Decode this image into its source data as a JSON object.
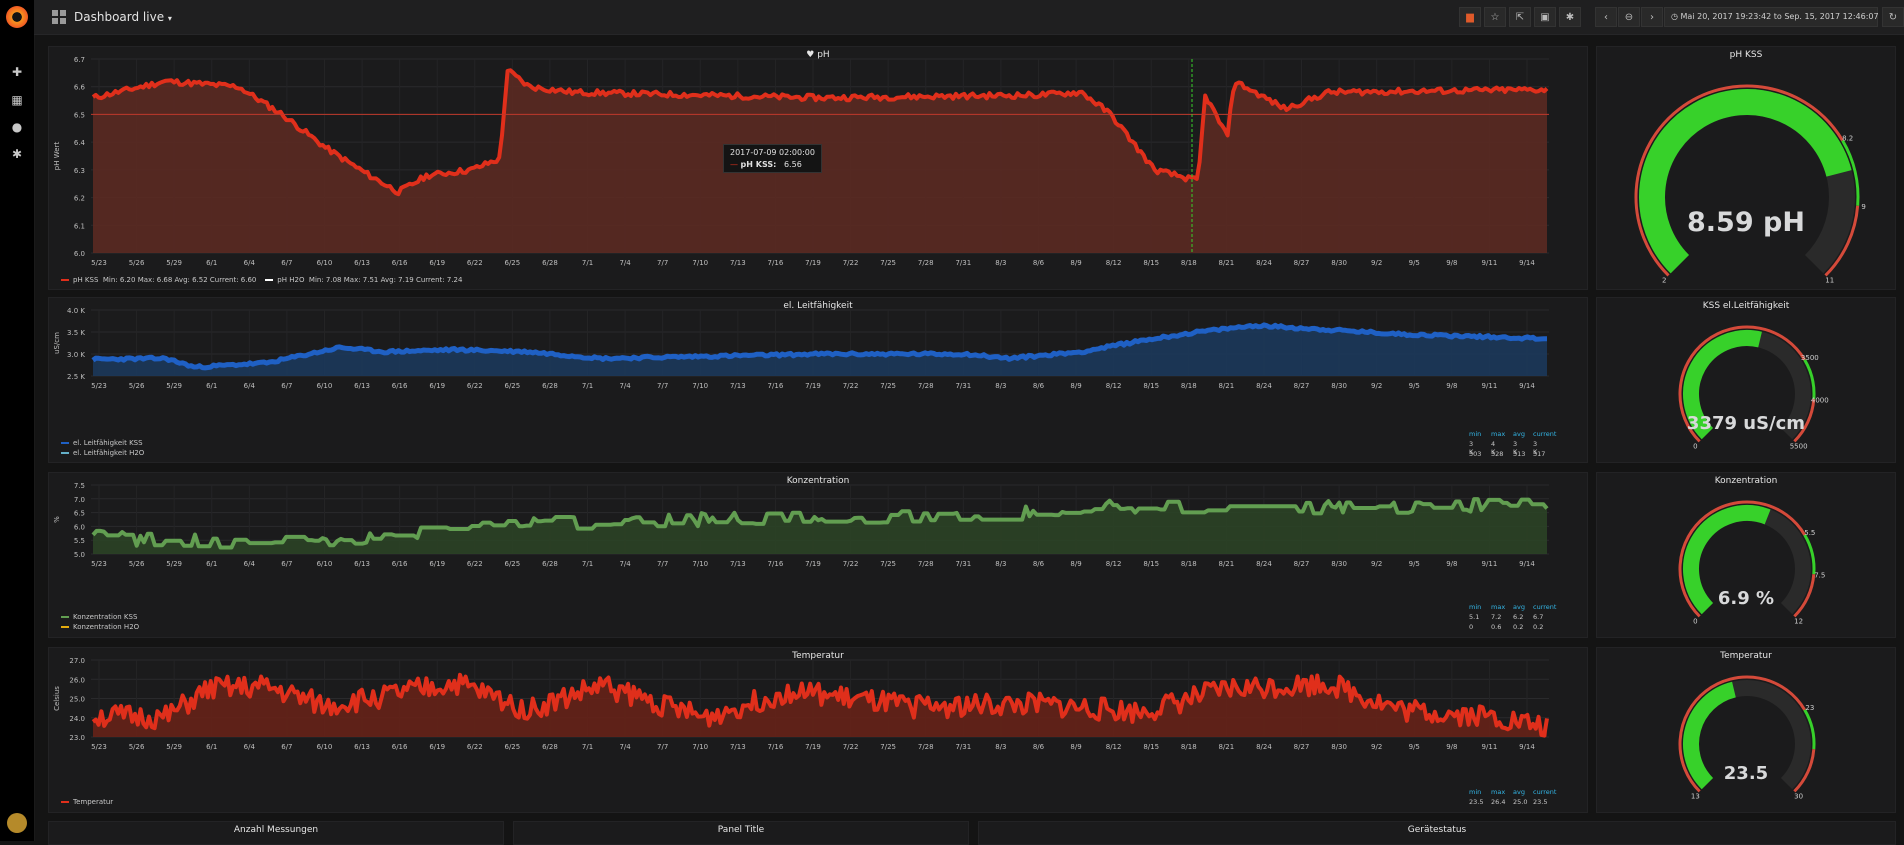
{
  "nav": {
    "title": "Dashboard live",
    "title_caret": "▾",
    "time_range": "Mai 20, 2017 19:23:42 to Sep. 15, 2017 12:46:07"
  },
  "colors": {
    "ph_line": "#e02f1b",
    "ph_fill": "#5e2a22",
    "blue_line": "#1f60c4",
    "blue_fill": "#1b3a5e",
    "green_line": "#629e51",
    "green_fill": "#2c4426",
    "temp_line": "#e02f1b",
    "temp_fill": "#6a2218",
    "gauge_green": "#37d12a",
    "gauge_red": "#d44a3a"
  },
  "ph_panel": {
    "title": "pH",
    "ylabel": "pH Wert",
    "yticks": [
      "6.7",
      "6.6",
      "6.5",
      "6.4",
      "6.3",
      "6.2",
      "6.1",
      "6.0"
    ],
    "legend": [
      {
        "name": "pH KSS",
        "stats": "Min: 6.20  Max: 6.68  Avg: 6.52  Current: 6.60",
        "color": "#e02f1b"
      },
      {
        "name": "pH H2O",
        "stats": "Min: 7.08  Max: 7.51  Avg: 7.19  Current: 7.24",
        "color": "#ffffff"
      }
    ],
    "tooltip": {
      "time": "2017-07-09 02:00:00",
      "series": "pH KSS:",
      "value": "6.56"
    }
  },
  "xticks": [
    "5/23",
    "5/26",
    "5/29",
    "6/1",
    "6/4",
    "6/7",
    "6/10",
    "6/13",
    "6/16",
    "6/19",
    "6/22",
    "6/25",
    "6/28",
    "7/1",
    "7/4",
    "7/7",
    "7/10",
    "7/13",
    "7/16",
    "7/19",
    "7/22",
    "7/25",
    "7/28",
    "7/31",
    "8/3",
    "8/6",
    "8/9",
    "8/12",
    "8/15",
    "8/18",
    "8/21",
    "8/24",
    "8/27",
    "8/30",
    "9/2",
    "9/5",
    "9/8",
    "9/11",
    "9/14"
  ],
  "cond_panel": {
    "title": "el. Leitfähigkeit",
    "ylabel": "uS/cm",
    "yticks": [
      "4.0 K",
      "3.5 K",
      "3.0 K",
      "2.5 K"
    ],
    "headers": [
      "min",
      "max",
      "avg",
      "current"
    ],
    "legend": [
      {
        "name": "el. Leitfähigkeit KSS",
        "color": "#1f60c4",
        "vals": [
          "3 K",
          "4 K",
          "3 K",
          "3 K"
        ]
      },
      {
        "name": "el. Leitfähigkeit H2O",
        "color": "#64b0c8",
        "vals": [
          "303",
          "328",
          "313",
          "317"
        ]
      }
    ]
  },
  "conc_panel": {
    "title": "Konzentration",
    "ylabel": "%",
    "yticks": [
      "7.5",
      "7.0",
      "6.5",
      "6.0",
      "5.5",
      "5.0"
    ],
    "headers": [
      "min",
      "max",
      "avg",
      "current"
    ],
    "legend": [
      {
        "name": "Konzentration KSS",
        "color": "#629e51",
        "vals": [
          "5.1",
          "7.2",
          "6.2",
          "6.7"
        ]
      },
      {
        "name": "Konzentration H2O",
        "color": "#e5ac0e",
        "vals": [
          "0",
          "0.6",
          "0.2",
          "0.2"
        ]
      }
    ]
  },
  "temp_panel": {
    "title": "Temperatur",
    "ylabel": "Celsius",
    "yticks": [
      "27.0",
      "26.0",
      "25.0",
      "24.0",
      "23.0"
    ],
    "headers": [
      "min",
      "max",
      "avg",
      "current"
    ],
    "legend": [
      {
        "name": "Temperatur",
        "color": "#e02f1b",
        "vals": [
          "23.5",
          "26.4",
          "25.0",
          "23.5"
        ]
      }
    ]
  },
  "gauges": [
    {
      "title": "pH KSS",
      "value": "8.59 pH",
      "fill": 0.78,
      "min": "2",
      "max": "11",
      "marks": [
        "8.2",
        "9"
      ]
    },
    {
      "title": "KSS el.Leitfähigkeit",
      "value": "3379 uS/cm",
      "fill": 0.55,
      "min": "0",
      "max": "5500",
      "marks": [
        "3500",
        "4000"
      ]
    },
    {
      "title": "Konzentration",
      "value": "6.9 %",
      "fill": 0.58,
      "min": "0",
      "max": "12",
      "marks": [
        "5.5",
        "7.5"
      ]
    },
    {
      "title": "Temperatur",
      "value": "23.5",
      "fill": 0.45,
      "min": "13",
      "max": "30",
      "marks": [
        "23"
      ]
    }
  ],
  "bottom_panels": [
    "Anzahl Messungen",
    "Panel Title",
    "Gerätestatus"
  ]
}
